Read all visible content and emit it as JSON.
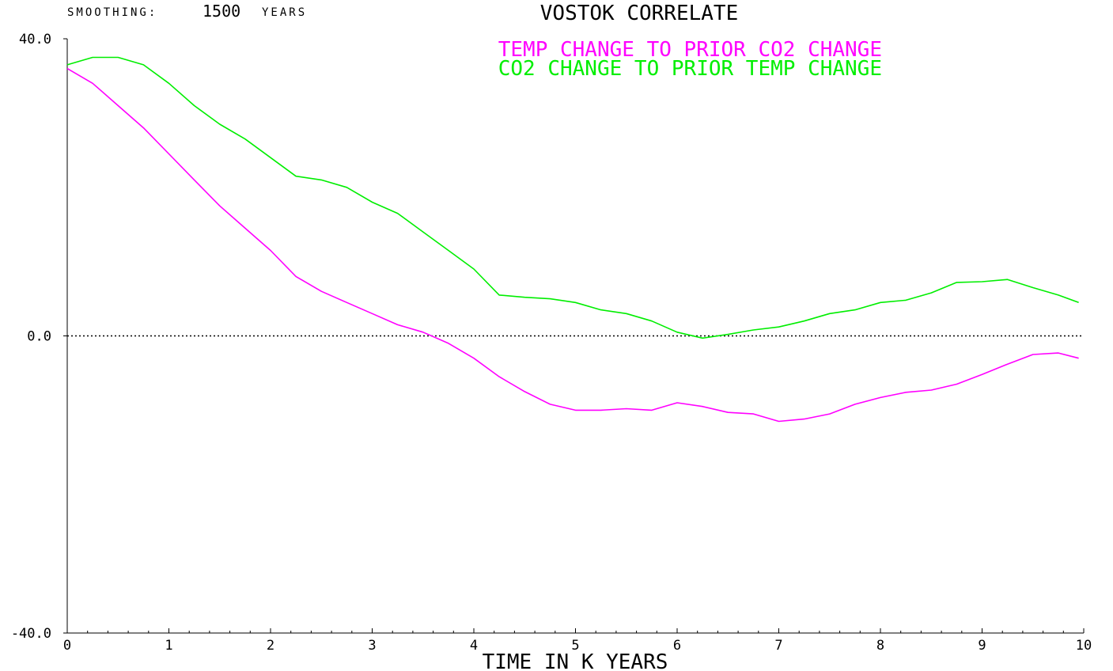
{
  "header": {
    "smoothing_label": "SMOOTHING:",
    "smoothing_value": "1500",
    "smoothing_unit": "YEARS"
  },
  "chart_data": {
    "type": "line",
    "title": "VOSTOK CORRELATE",
    "xlabel": "TIME IN K YEARS",
    "ylabel": "",
    "xlim": [
      0,
      10
    ],
    "ylim": [
      -40,
      40
    ],
    "y_ticks": [
      "40.0",
      "0.0",
      "-40.0"
    ],
    "x_ticks": [
      "0",
      "1",
      "2",
      "3",
      "4",
      "5",
      "6",
      "7",
      "8",
      "9",
      "10"
    ],
    "zero_line": "dotted",
    "grid": false,
    "legend_position": "top-center",
    "series": [
      {
        "name": "TEMP CHANGE TO PRIOR  CO2 CHANGE",
        "color": "#ff00ff",
        "x": [
          0,
          0.25,
          0.5,
          0.75,
          1.0,
          1.25,
          1.5,
          1.75,
          2.0,
          2.25,
          2.5,
          2.75,
          3.0,
          3.25,
          3.5,
          3.75,
          4.0,
          4.25,
          4.5,
          4.75,
          5.0,
          5.25,
          5.5,
          5.75,
          6.0,
          6.25,
          6.5,
          6.75,
          7.0,
          7.25,
          7.5,
          7.75,
          8.0,
          8.25,
          8.5,
          8.75,
          9.0,
          9.25,
          9.5,
          9.75,
          9.95
        ],
        "y": [
          36,
          34,
          31,
          28,
          24.5,
          21,
          17.5,
          14.5,
          11.5,
          8,
          6,
          4.5,
          3,
          1.5,
          0.5,
          -1,
          -3,
          -5.5,
          -7.5,
          -9.2,
          -10,
          -10,
          -9.8,
          -10,
          -9,
          -9.5,
          -10.3,
          -10.5,
          -11.5,
          -11.2,
          -10.5,
          -9.2,
          -8.3,
          -7.6,
          -7.3,
          -6.5,
          -5.2,
          -3.8,
          -2.5,
          -2.3,
          -3
        ]
      },
      {
        "name": "CO2 CHANGE TO PRIOR TEMP CHANGE",
        "color": "#00ee00",
        "x": [
          0,
          0.25,
          0.5,
          0.75,
          1.0,
          1.25,
          1.5,
          1.75,
          2.0,
          2.25,
          2.5,
          2.75,
          3.0,
          3.25,
          3.5,
          3.75,
          4.0,
          4.25,
          4.5,
          4.75,
          5.0,
          5.25,
          5.5,
          5.75,
          6.0,
          6.25,
          6.5,
          6.75,
          7.0,
          7.25,
          7.5,
          7.75,
          8.0,
          8.25,
          8.5,
          8.75,
          9.0,
          9.25,
          9.5,
          9.75,
          9.95
        ],
        "y": [
          36.5,
          37.5,
          37.5,
          36.5,
          34,
          31,
          28.5,
          26.5,
          24,
          21.5,
          21,
          20,
          18,
          16.5,
          14,
          11.5,
          9,
          5.5,
          5.2,
          5,
          4.5,
          3.5,
          3,
          2,
          0.5,
          -0.3,
          0.2,
          0.8,
          1.2,
          2,
          3,
          3.5,
          4.5,
          4.8,
          5.8,
          7.2,
          7.3,
          7.6,
          6.5,
          5.5,
          4.5
        ]
      }
    ]
  }
}
